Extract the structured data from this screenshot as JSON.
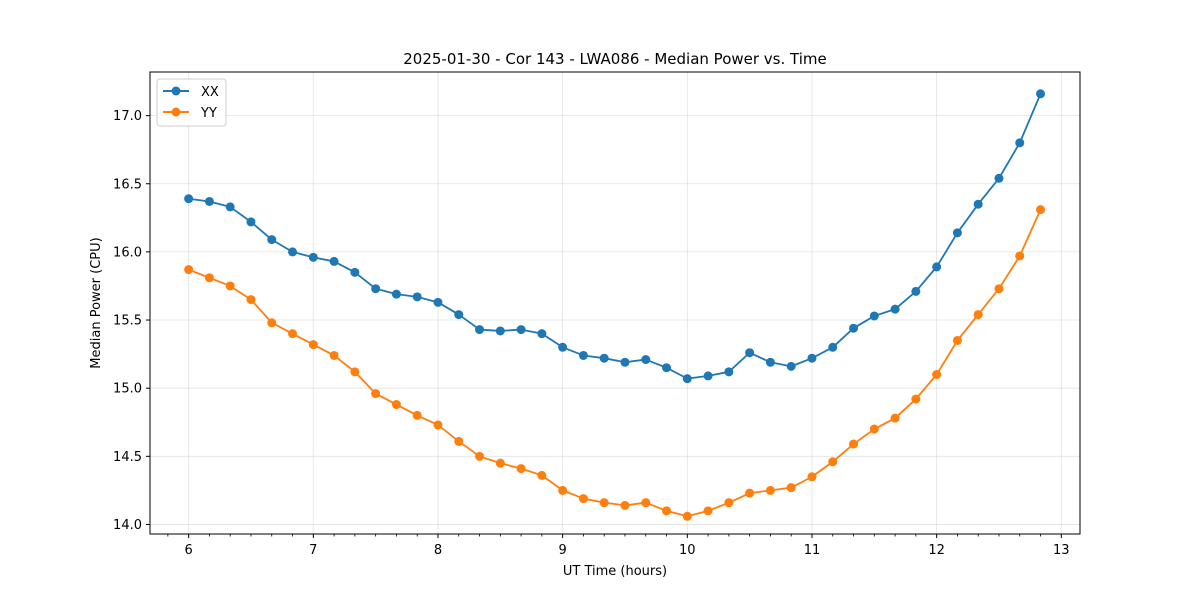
{
  "chart_data": {
    "type": "line",
    "title": "2025-01-30 - Cor 143 - LWA086 - Median Power vs. Time",
    "xlabel": "UT Time (hours)",
    "ylabel": "Median Power (CPU)",
    "xlim": [
      5.69,
      13.15
    ],
    "ylim": [
      13.93,
      17.32
    ],
    "xticks": [
      6,
      7,
      8,
      9,
      10,
      11,
      12,
      13
    ],
    "xtick_labels": [
      "6",
      "7",
      "8",
      "9",
      "10",
      "11",
      "12",
      "13"
    ],
    "yticks": [
      14.0,
      14.5,
      15.0,
      15.5,
      16.0,
      16.5,
      17.0
    ],
    "ytick_labels": [
      "14.0",
      "14.5",
      "15.0",
      "15.5",
      "16.0",
      "16.5",
      "17.0"
    ],
    "grid": true,
    "legend_position": "top-left",
    "x": [
      6.0,
      6.1667,
      6.3333,
      6.5,
      6.6667,
      6.8333,
      7.0,
      7.1667,
      7.3333,
      7.5,
      7.6667,
      7.8333,
      8.0,
      8.1667,
      8.3333,
      8.5,
      8.6667,
      8.8333,
      9.0,
      9.1667,
      9.3333,
      9.5,
      9.6667,
      9.8333,
      10.0,
      10.1667,
      10.3333,
      10.5,
      10.6667,
      10.8333,
      11.0,
      11.1667,
      11.3333,
      11.5,
      11.6667,
      11.8333,
      12.0,
      12.1667,
      12.3333,
      12.5,
      12.6667,
      12.8333
    ],
    "series": [
      {
        "name": "XX",
        "color": "#1f77b4",
        "values": [
          16.39,
          16.37,
          16.33,
          16.22,
          16.09,
          16.0,
          15.96,
          15.93,
          15.85,
          15.73,
          15.69,
          15.67,
          15.63,
          15.54,
          15.43,
          15.42,
          15.43,
          15.4,
          15.3,
          15.24,
          15.22,
          15.19,
          15.21,
          15.15,
          15.07,
          15.09,
          15.12,
          15.26,
          15.19,
          15.16,
          15.22,
          15.3,
          15.44,
          15.53,
          15.58,
          15.71,
          15.89,
          16.14,
          16.35,
          16.54,
          16.8,
          17.16
        ]
      },
      {
        "name": "YY",
        "color": "#ff7f0e",
        "values": [
          15.87,
          15.81,
          15.75,
          15.65,
          15.48,
          15.4,
          15.32,
          15.24,
          15.12,
          14.96,
          14.88,
          14.8,
          14.73,
          14.61,
          14.5,
          14.45,
          14.41,
          14.36,
          14.25,
          14.19,
          14.16,
          14.14,
          14.16,
          14.1,
          14.06,
          14.1,
          14.16,
          14.23,
          14.25,
          14.27,
          14.35,
          14.46,
          14.59,
          14.7,
          14.78,
          14.92,
          15.1,
          15.35,
          15.54,
          15.73,
          15.97,
          16.31
        ]
      }
    ]
  }
}
